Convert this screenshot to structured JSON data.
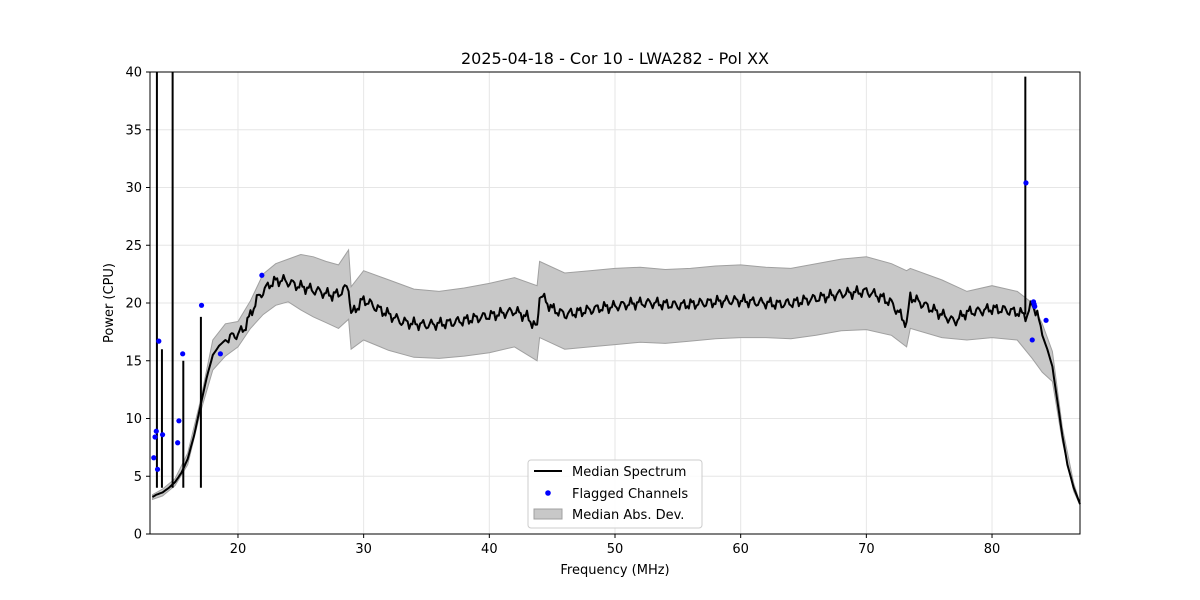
{
  "chart_data": {
    "type": "line",
    "title": "2025-04-18 - Cor 10 - LWA282 - Pol XX",
    "xlabel": "Frequency (MHz)",
    "ylabel": "Power (CPU)",
    "xlim": [
      13.0,
      87.0
    ],
    "ylim": [
      0,
      40
    ],
    "xticks": [
      20,
      30,
      40,
      50,
      60,
      70,
      80
    ],
    "yticks": [
      0,
      5,
      10,
      15,
      20,
      25,
      30,
      35,
      40
    ],
    "grid": true,
    "legend_position": "bottom-center",
    "legend": [
      "Median Spectrum",
      "Flagged Channels",
      "Median Abs. Dev."
    ],
    "colors": {
      "median": "#000000",
      "flagged": "#0000ff",
      "band_fill": "#c8c8c8",
      "band_edge": "#a0a0a0",
      "grid": "#e6e6e6"
    },
    "series": [
      {
        "name": "Median Spectrum",
        "x": [
          13.2,
          13.5,
          14.0,
          14.5,
          15.0,
          15.5,
          16.0,
          16.5,
          17.0,
          17.5,
          18.0,
          18.5,
          19.0,
          19.5,
          20.0,
          20.5,
          21.0,
          21.5,
          22.0,
          22.5,
          23.0,
          23.5,
          24.0,
          24.5,
          25.0,
          25.5,
          26.0,
          26.5,
          27.0,
          27.5,
          28.0,
          28.5,
          28.8,
          29.0,
          30.0,
          31.0,
          32.0,
          33.0,
          34.0,
          35.0,
          36.0,
          37.0,
          38.0,
          39.0,
          40.0,
          41.0,
          42.0,
          43.0,
          43.8,
          44.0,
          45.0,
          46.0,
          47.0,
          48.0,
          49.0,
          50.0,
          51.0,
          52.0,
          53.0,
          54.0,
          55.0,
          56.0,
          57.0,
          58.0,
          59.0,
          60.0,
          61.0,
          62.0,
          63.0,
          64.0,
          65.0,
          66.0,
          67.0,
          68.0,
          69.0,
          70.0,
          71.0,
          72.0,
          73.2,
          73.5,
          74.0,
          75.0,
          76.0,
          77.0,
          78.0,
          79.0,
          80.0,
          81.0,
          82.0,
          82.8,
          83.2,
          83.6,
          84.0,
          84.4,
          84.8,
          85.2,
          85.6,
          86.0,
          86.5,
          87.0
        ],
        "values": [
          3.2,
          3.4,
          3.6,
          4.0,
          4.5,
          5.3,
          6.5,
          8.5,
          11.0,
          13.5,
          15.5,
          16.3,
          16.8,
          17.1,
          17.3,
          17.8,
          19.0,
          20.3,
          21.0,
          21.6,
          21.9,
          22.0,
          21.8,
          21.6,
          21.4,
          21.3,
          21.1,
          21.0,
          20.8,
          20.7,
          20.8,
          21.2,
          21.5,
          19.0,
          20.3,
          19.6,
          19.0,
          18.4,
          18.2,
          18.1,
          18.2,
          18.3,
          18.5,
          18.7,
          18.9,
          19.1,
          19.3,
          18.8,
          17.8,
          20.8,
          19.5,
          19.0,
          19.2,
          19.4,
          19.6,
          19.7,
          19.9,
          20.0,
          20.0,
          19.9,
          19.8,
          19.9,
          20.0,
          20.1,
          20.2,
          20.2,
          20.1,
          20.0,
          19.9,
          20.0,
          20.2,
          20.4,
          20.6,
          20.8,
          20.9,
          21.0,
          20.6,
          20.0,
          18.2,
          20.6,
          20.2,
          19.6,
          19.0,
          18.4,
          19.2,
          19.3,
          19.5,
          19.4,
          19.2,
          18.9,
          20.0,
          19.0,
          17.2,
          16.0,
          14.5,
          11.5,
          8.5,
          6.0,
          4.0,
          2.6
        ]
      },
      {
        "name": "Median Abs. Dev.",
        "x": [
          13.2,
          14.0,
          15.0,
          16.0,
          17.0,
          18.0,
          19.0,
          20.0,
          21.0,
          22.0,
          23.0,
          24.0,
          25.0,
          26.0,
          27.0,
          28.0,
          28.8,
          29.0,
          30.0,
          32.0,
          34.0,
          36.0,
          38.0,
          40.0,
          42.0,
          43.8,
          44.0,
          46.0,
          48.0,
          50.0,
          52.0,
          54.0,
          56.0,
          58.0,
          60.0,
          62.0,
          64.0,
          66.0,
          68.0,
          70.0,
          72.0,
          73.2,
          73.5,
          76.0,
          78.0,
          80.0,
          82.0,
          83.2,
          84.0,
          84.8,
          85.6,
          86.5,
          87.0
        ],
        "upper": [
          3.4,
          3.9,
          4.8,
          7.0,
          11.5,
          16.8,
          18.2,
          18.4,
          20.2,
          22.5,
          23.4,
          23.8,
          24.2,
          24.0,
          23.6,
          23.3,
          24.6,
          21.4,
          22.8,
          22.0,
          21.2,
          21.0,
          21.3,
          21.7,
          22.2,
          21.5,
          23.6,
          22.6,
          22.8,
          23.0,
          23.1,
          22.9,
          23.0,
          23.2,
          23.3,
          23.1,
          23.0,
          23.4,
          23.8,
          24.0,
          23.4,
          22.8,
          23.0,
          22.0,
          21.0,
          21.5,
          21.0,
          20.0,
          18.2,
          15.8,
          9.2,
          4.4,
          2.7
        ],
        "lower": [
          3.0,
          3.3,
          4.2,
          6.0,
          10.5,
          14.2,
          15.4,
          16.2,
          17.8,
          19.0,
          19.8,
          20.1,
          19.4,
          18.8,
          18.3,
          17.8,
          18.6,
          16.0,
          16.8,
          15.9,
          15.3,
          15.2,
          15.4,
          15.7,
          16.2,
          15.0,
          17.0,
          16.0,
          16.2,
          16.4,
          16.6,
          16.5,
          16.7,
          16.9,
          17.0,
          17.0,
          16.9,
          17.2,
          17.6,
          17.7,
          17.2,
          16.2,
          17.8,
          17.0,
          16.8,
          17.0,
          16.8,
          15.2,
          14.0,
          13.2,
          8.0,
          3.7,
          2.5
        ]
      },
      {
        "name": "Flagged Channels",
        "x": [
          13.3,
          13.4,
          13.5,
          13.6,
          13.7,
          14.0,
          15.2,
          15.3,
          15.6,
          17.1,
          18.6,
          21.9,
          82.7,
          83.2,
          83.3,
          83.35,
          83.4,
          84.3
        ],
        "values": [
          6.6,
          8.4,
          8.9,
          5.6,
          16.7,
          8.6,
          7.9,
          9.8,
          15.6,
          19.8,
          15.6,
          22.4,
          30.4,
          16.8,
          20.1,
          19.9,
          19.7,
          18.5
        ]
      },
      {
        "name": "Spikes",
        "x": [
          13.55,
          13.95,
          14.8,
          15.65,
          17.05,
          82.65
        ],
        "values": [
          40.0,
          16.0,
          40.0,
          15.0,
          18.8,
          39.6
        ]
      }
    ]
  }
}
